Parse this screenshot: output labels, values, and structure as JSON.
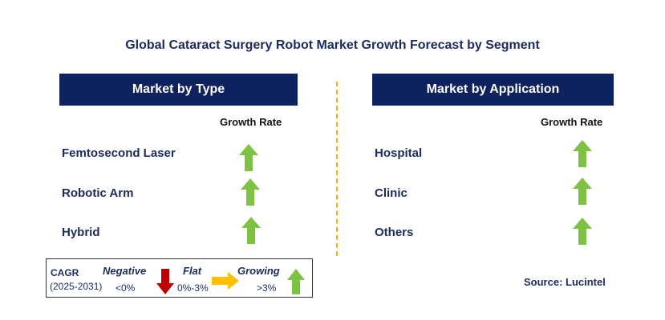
{
  "title": "Global Cataract Surgery Robot Market Growth Forecast by Segment",
  "left_panel": {
    "header": "Market by Type",
    "column_label": "Growth Rate",
    "rows": [
      {
        "label": "Femtosecond Laser",
        "trend": "growing"
      },
      {
        "label": "Robotic Arm",
        "trend": "growing"
      },
      {
        "label": "Hybrid",
        "trend": "growing"
      }
    ]
  },
  "right_panel": {
    "header": "Market by Application",
    "column_label": "Growth Rate",
    "rows": [
      {
        "label": "Hospital",
        "trend": "growing"
      },
      {
        "label": "Clinic",
        "trend": "growing"
      },
      {
        "label": "Others",
        "trend": "growing"
      }
    ]
  },
  "legend": {
    "cagr_label": "CAGR",
    "period": "(2025-2031)",
    "negative": {
      "label": "Negative",
      "range": "<0%",
      "color": "#c00000"
    },
    "flat": {
      "label": "Flat",
      "range": "0%-3%",
      "color": "#ffc000"
    },
    "growing": {
      "label": "Growing",
      "range": ">3%",
      "color": "#7dc242"
    }
  },
  "source": "Source: Lucintel",
  "colors": {
    "header_bg": "#0e2260",
    "text_navy": "#1a2b5c",
    "divider": "#f0b400",
    "arrow_up": "#7dc242"
  }
}
